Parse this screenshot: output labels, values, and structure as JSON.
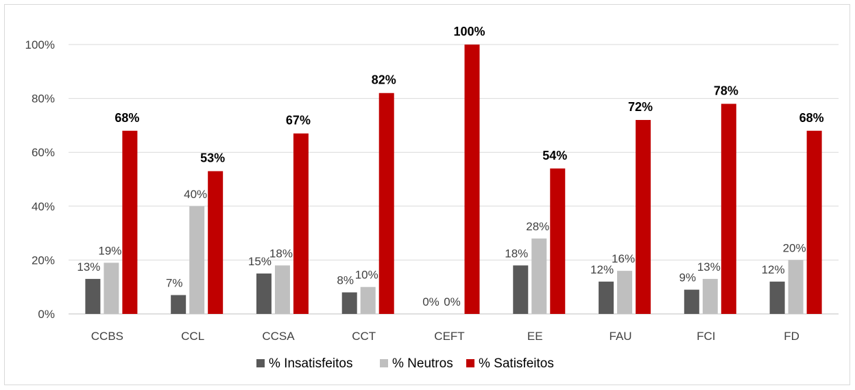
{
  "chart_data": {
    "type": "bar",
    "categories": [
      "CCBS",
      "CCL",
      "CCSA",
      "CCT",
      "CEFT",
      "EE",
      "FAU",
      "FCI",
      "FD"
    ],
    "series": [
      {
        "name": "% Insatisfeitos",
        "color": "#595959",
        "values": [
          13,
          7,
          15,
          8,
          0,
          18,
          12,
          9,
          12
        ],
        "labels": [
          "13%",
          "7%",
          "15%",
          "8%",
          "0%",
          "18%",
          "12%",
          "9%",
          "12%"
        ]
      },
      {
        "name": "% Neutros",
        "color": "#bfbfbf",
        "values": [
          19,
          40,
          18,
          10,
          0,
          28,
          16,
          13,
          20
        ],
        "labels": [
          "19%",
          "40%",
          "18%",
          "10%",
          "0%",
          "28%",
          "16%",
          "13%",
          "20%"
        ]
      },
      {
        "name": "% Satisfeitos",
        "color": "#c00000",
        "values": [
          68,
          53,
          67,
          82,
          100,
          54,
          72,
          78,
          68
        ],
        "labels": [
          "68%",
          "53%",
          "67%",
          "82%",
          "100%",
          "54%",
          "72%",
          "78%",
          "68%"
        ]
      }
    ],
    "y_ticks": [
      "0%",
      "20%",
      "40%",
      "60%",
      "80%",
      "100%"
    ],
    "ylim": [
      0,
      100
    ],
    "grid": true,
    "legend_position": "bottom"
  }
}
